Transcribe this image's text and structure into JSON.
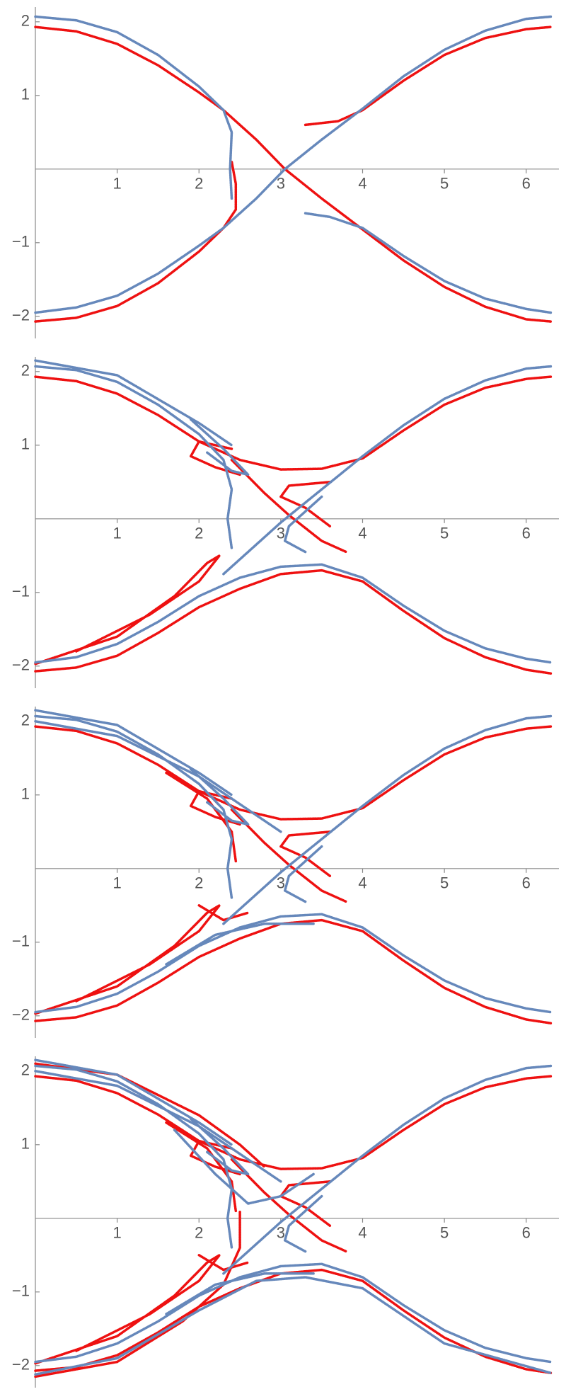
{
  "chart_data": [
    {
      "type": "line",
      "xlim": [
        0,
        6.4
      ],
      "ylim": [
        -2.3,
        2.2
      ],
      "xticks": [
        1,
        2,
        3,
        4,
        5,
        6
      ],
      "yticks": [
        {
          "value": -2,
          "label": "−2"
        },
        {
          "value": -1,
          "label": "−1"
        },
        1,
        2
      ],
      "series": [
        {
          "color": "#ee1111",
          "x": [
            0,
            0.5,
            1,
            1.5,
            2,
            2.3,
            2.7,
            3.05,
            3.5,
            4,
            4.5,
            5,
            5.5,
            6,
            6.3,
            null,
            3.3,
            3.7,
            4,
            4.5,
            5,
            5.5,
            6,
            6.3,
            null,
            0,
            0.5,
            1,
            1.5,
            2,
            2.3,
            2.45,
            2.45,
            2.4
          ],
          "values": [
            1.93,
            1.87,
            1.7,
            1.41,
            1.04,
            0.8,
            0.4,
            0,
            -0.4,
            -0.82,
            -1.24,
            -1.6,
            -1.87,
            -2.04,
            -2.07,
            null,
            0.6,
            0.65,
            0.8,
            1.2,
            1.55,
            1.78,
            1.9,
            1.93,
            null,
            -2.07,
            -2.02,
            -1.86,
            -1.55,
            -1.12,
            -0.8,
            -0.55,
            -0.2,
            0.1
          ]
        },
        {
          "color": "#6688bb",
          "x": [
            0,
            0.5,
            1,
            1.5,
            2,
            2.3,
            2.4,
            2.38,
            2.4,
            null,
            0,
            0.5,
            1,
            1.5,
            2,
            2.3,
            2.7,
            3.05,
            3.5,
            4,
            4.5,
            5,
            5.5,
            6,
            6.3,
            null,
            3.3,
            3.6,
            4,
            4.5,
            5,
            5.5,
            6,
            6.3
          ],
          "values": [
            2.07,
            2.02,
            1.86,
            1.55,
            1.12,
            0.8,
            0.5,
            0,
            -0.4,
            null,
            -1.95,
            -1.88,
            -1.72,
            -1.42,
            -1.04,
            -0.8,
            -0.4,
            0,
            0.4,
            0.82,
            1.26,
            1.62,
            1.88,
            2.04,
            2.07,
            null,
            -0.6,
            -0.65,
            -0.8,
            -1.18,
            -1.52,
            -1.76,
            -1.9,
            -1.95
          ]
        }
      ]
    },
    {
      "type": "line",
      "xlim": [
        0,
        6.4
      ],
      "ylim": [
        -2.3,
        2.2
      ],
      "xticks": [
        1,
        2,
        3,
        4,
        5,
        6
      ],
      "yticks": [
        {
          "value": -2,
          "label": "−2"
        },
        {
          "value": -1,
          "label": "−1"
        },
        1,
        2
      ],
      "series": [
        {
          "color": "#ee1111",
          "x": [
            0,
            0.5,
            1,
            1.5,
            2,
            2.5,
            3,
            3.5,
            4,
            4.5,
            5,
            5.5,
            6,
            6.3,
            null,
            0,
            0.5,
            1,
            1.5,
            2,
            2.5,
            3,
            3.5,
            4,
            4.5,
            5,
            5.5,
            6,
            6.3,
            null,
            2.4,
            2.8,
            3.1,
            3.5,
            3.8,
            null,
            2.4,
            2.0,
            1.9,
            2.2,
            2.5,
            null,
            0,
            1,
            1.7,
            2.1,
            2.25,
            2.0,
            1.4,
            0.5,
            null,
            3.6,
            3.1,
            3.0,
            3.3,
            3.6
          ],
          "values": [
            1.93,
            1.87,
            1.7,
            1.41,
            1.05,
            0.8,
            0.67,
            0.68,
            0.82,
            1.2,
            1.55,
            1.78,
            1.9,
            1.93,
            null,
            -2.07,
            -2.02,
            -1.86,
            -1.55,
            -1.2,
            -0.95,
            -0.75,
            -0.7,
            -0.85,
            -1.25,
            -1.62,
            -1.88,
            -2.05,
            -2.1,
            null,
            0.8,
            0.35,
            0.05,
            -0.3,
            -0.45,
            null,
            0.95,
            1.05,
            0.85,
            0.7,
            0.6,
            null,
            -1.97,
            -1.6,
            -1.05,
            -0.6,
            -0.5,
            -0.85,
            -1.3,
            -1.8,
            null,
            0.5,
            0.45,
            0.3,
            0.15,
            -0.1
          ]
        },
        {
          "color": "#6688bb",
          "x": [
            0,
            0.5,
            1,
            1.5,
            2,
            2.3,
            2.4,
            2.35,
            2.4,
            null,
            0,
            0.5,
            1,
            1.5,
            2,
            2.5,
            3,
            3.5,
            4,
            4.5,
            5,
            5.5,
            6,
            6.3,
            null,
            2.3,
            2.7,
            3.0,
            3.5,
            4,
            4.5,
            5,
            5.5,
            6,
            6.3,
            null,
            1.9,
            2.3,
            2.6,
            2.4,
            2.1,
            null,
            3.3,
            3.05,
            3.1,
            3.5,
            null,
            0,
            1,
            2,
            2.4
          ],
          "values": [
            2.07,
            2.02,
            1.86,
            1.55,
            1.15,
            0.8,
            0.4,
            0,
            -0.4,
            null,
            -1.95,
            -1.88,
            -1.7,
            -1.4,
            -1.05,
            -0.8,
            -0.65,
            -0.62,
            -0.8,
            -1.18,
            -1.52,
            -1.76,
            -1.9,
            -1.95,
            null,
            -0.75,
            -0.35,
            -0.05,
            0.4,
            0.85,
            1.27,
            1.63,
            1.88,
            2.04,
            2.07,
            null,
            1.35,
            0.95,
            0.6,
            0.65,
            0.9,
            null,
            -0.45,
            -0.3,
            -0.1,
            0.3,
            null,
            2.15,
            1.95,
            1.3,
            1.0
          ]
        }
      ]
    },
    {
      "type": "line",
      "xlim": [
        0,
        6.4
      ],
      "ylim": [
        -2.3,
        2.2
      ],
      "xticks": [
        1,
        2,
        3,
        4,
        5,
        6
      ],
      "yticks": [
        {
          "value": -2,
          "label": "−2"
        },
        {
          "value": -1,
          "label": "−1"
        },
        1,
        2
      ],
      "series": [
        {
          "color": "#ee1111",
          "x": [
            0,
            0.5,
            1,
            1.5,
            2,
            2.5,
            3,
            3.5,
            4,
            4.5,
            5,
            5.5,
            6,
            6.3,
            null,
            0,
            0.5,
            1,
            1.5,
            2,
            2.5,
            3,
            3.5,
            4,
            4.5,
            5,
            5.5,
            6,
            6.3,
            null,
            2.4,
            2.8,
            3.1,
            3.5,
            3.8,
            null,
            2.4,
            2.0,
            1.9,
            2.2,
            2.5,
            null,
            0,
            1,
            1.7,
            2.1,
            2.25,
            2.0,
            1.4,
            0.5,
            null,
            3.6,
            3.1,
            3.0,
            3.3,
            3.6,
            null,
            1.6,
            2.1,
            2.4,
            2.45,
            null,
            2.0,
            2.3,
            2.6
          ],
          "values": [
            1.93,
            1.87,
            1.7,
            1.41,
            1.05,
            0.8,
            0.67,
            0.68,
            0.82,
            1.2,
            1.55,
            1.78,
            1.9,
            1.93,
            null,
            -2.07,
            -2.02,
            -1.86,
            -1.55,
            -1.2,
            -0.95,
            -0.75,
            -0.7,
            -0.85,
            -1.25,
            -1.62,
            -1.88,
            -2.05,
            -2.1,
            null,
            0.8,
            0.35,
            0.05,
            -0.3,
            -0.45,
            null,
            0.95,
            1.05,
            0.85,
            0.7,
            0.6,
            null,
            -1.97,
            -1.6,
            -1.05,
            -0.6,
            -0.5,
            -0.85,
            -1.3,
            -1.8,
            null,
            0.5,
            0.45,
            0.3,
            0.15,
            -0.1,
            null,
            1.3,
            0.95,
            0.5,
            0.1,
            null,
            -0.5,
            -0.7,
            -0.6
          ]
        },
        {
          "color": "#6688bb",
          "x": [
            0,
            0.5,
            1,
            1.5,
            2,
            2.3,
            2.4,
            2.35,
            2.4,
            null,
            0,
            0.5,
            1,
            1.5,
            2,
            2.5,
            3,
            3.5,
            4,
            4.5,
            5,
            5.5,
            6,
            6.3,
            null,
            2.3,
            2.7,
            3.0,
            3.5,
            4,
            4.5,
            5,
            5.5,
            6,
            6.3,
            null,
            1.9,
            2.3,
            2.6,
            2.4,
            2.1,
            null,
            3.3,
            3.05,
            3.1,
            3.5,
            null,
            0,
            1,
            2,
            2.4,
            null,
            1.6,
            2.2,
            2.8,
            3.4,
            null,
            0,
            1,
            2,
            2.6,
            3.0
          ],
          "values": [
            2.07,
            2.02,
            1.86,
            1.55,
            1.15,
            0.8,
            0.4,
            0,
            -0.4,
            null,
            -1.95,
            -1.88,
            -1.7,
            -1.4,
            -1.05,
            -0.8,
            -0.65,
            -0.62,
            -0.8,
            -1.18,
            -1.52,
            -1.76,
            -1.9,
            -1.95,
            null,
            -0.75,
            -0.35,
            -0.05,
            0.4,
            0.85,
            1.27,
            1.63,
            1.88,
            2.04,
            2.07,
            null,
            1.35,
            0.95,
            0.6,
            0.65,
            0.9,
            null,
            -0.45,
            -0.3,
            -0.1,
            0.3,
            null,
            2.15,
            1.95,
            1.3,
            1.0,
            null,
            -1.3,
            -0.9,
            -0.75,
            -0.75,
            null,
            2.0,
            1.8,
            1.25,
            0.8,
            0.5
          ]
        }
      ]
    },
    {
      "type": "line",
      "xlim": [
        0,
        6.4
      ],
      "ylim": [
        -2.3,
        2.2
      ],
      "xticks": [
        1,
        2,
        3,
        4,
        5,
        6
      ],
      "yticks": [
        {
          "value": -2,
          "label": "−2"
        },
        {
          "value": -1,
          "label": "−1"
        },
        1,
        2
      ],
      "series": [
        {
          "color": "#ee1111",
          "x": [
            0,
            0.5,
            1,
            1.5,
            2,
            2.5,
            3,
            3.5,
            4,
            4.5,
            5,
            5.5,
            6,
            6.3,
            null,
            0,
            0.5,
            1,
            1.5,
            2,
            2.5,
            3,
            3.5,
            4,
            4.5,
            5,
            5.5,
            6,
            6.3,
            null,
            2.4,
            2.8,
            3.1,
            3.5,
            3.8,
            null,
            2.4,
            2.0,
            1.9,
            2.2,
            2.5,
            null,
            0,
            1,
            1.7,
            2.1,
            2.25,
            2.0,
            1.4,
            0.5,
            null,
            3.6,
            3.1,
            3.0,
            3.3,
            3.6,
            null,
            1.6,
            2.1,
            2.4,
            2.45,
            null,
            2.0,
            2.3,
            2.6,
            null,
            0,
            1,
            2,
            2.5,
            2.8,
            null,
            0,
            1,
            1.8,
            2.3,
            2.5,
            2.5
          ],
          "values": [
            1.93,
            1.87,
            1.7,
            1.41,
            1.05,
            0.8,
            0.67,
            0.68,
            0.82,
            1.2,
            1.55,
            1.78,
            1.9,
            1.93,
            null,
            -2.07,
            -2.02,
            -1.86,
            -1.55,
            -1.2,
            -0.95,
            -0.75,
            -0.7,
            -0.85,
            -1.25,
            -1.62,
            -1.88,
            -2.05,
            -2.1,
            null,
            0.8,
            0.35,
            0.05,
            -0.3,
            -0.45,
            null,
            0.95,
            1.05,
            0.85,
            0.7,
            0.6,
            null,
            -1.97,
            -1.6,
            -1.05,
            -0.6,
            -0.5,
            -0.85,
            -1.3,
            -1.8,
            null,
            0.5,
            0.45,
            0.3,
            0.15,
            -0.1,
            null,
            1.3,
            0.95,
            0.5,
            0.1,
            null,
            -0.5,
            -0.7,
            -0.6,
            null,
            2.1,
            1.95,
            1.4,
            1.0,
            0.7,
            null,
            -2.15,
            -1.95,
            -1.4,
            -0.9,
            -0.4,
            0.1
          ]
        },
        {
          "color": "#6688bb",
          "x": [
            0,
            0.5,
            1,
            1.5,
            2,
            2.3,
            2.4,
            2.35,
            2.4,
            null,
            0,
            0.5,
            1,
            1.5,
            2,
            2.5,
            3,
            3.5,
            4,
            4.5,
            5,
            5.5,
            6,
            6.3,
            null,
            2.3,
            2.7,
            3.0,
            3.5,
            4,
            4.5,
            5,
            5.5,
            6,
            6.3,
            null,
            1.9,
            2.3,
            2.6,
            2.4,
            2.1,
            null,
            3.3,
            3.05,
            3.1,
            3.5,
            null,
            0,
            1,
            2,
            2.4,
            null,
            1.6,
            2.2,
            2.8,
            3.4,
            null,
            0,
            1,
            2,
            2.6,
            3.0,
            null,
            0,
            1,
            2,
            2.7,
            3.3,
            4,
            5,
            6.3,
            null,
            1.7,
            2.2,
            2.6,
            3.0,
            3.4
          ],
          "values": [
            2.07,
            2.02,
            1.86,
            1.55,
            1.15,
            0.8,
            0.4,
            0,
            -0.4,
            null,
            -1.95,
            -1.88,
            -1.7,
            -1.4,
            -1.05,
            -0.8,
            -0.65,
            -0.62,
            -0.8,
            -1.18,
            -1.52,
            -1.76,
            -1.9,
            -1.95,
            null,
            -0.75,
            -0.35,
            -0.05,
            0.4,
            0.85,
            1.27,
            1.63,
            1.88,
            2.04,
            2.07,
            null,
            1.35,
            0.95,
            0.6,
            0.65,
            0.9,
            null,
            -0.45,
            -0.3,
            -0.1,
            0.3,
            null,
            2.15,
            1.95,
            1.3,
            1.0,
            null,
            -1.3,
            -0.9,
            -0.75,
            -0.75,
            null,
            2.0,
            1.8,
            1.25,
            0.8,
            0.5,
            null,
            -2.12,
            -1.9,
            -1.25,
            -0.85,
            -0.8,
            -0.95,
            -1.7,
            -2.1,
            null,
            1.2,
            0.6,
            0.2,
            0.3,
            0.6
          ]
        }
      ]
    }
  ]
}
